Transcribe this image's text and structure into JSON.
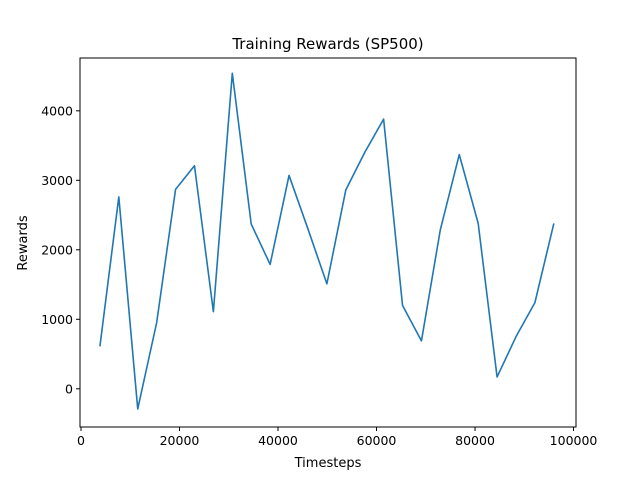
{
  "chart_data": {
    "type": "line",
    "title": "Training Rewards (SP500)",
    "xlabel": "Timesteps",
    "ylabel": "Rewards",
    "xlim": [
      -200,
      100500
    ],
    "ylim": [
      -550,
      4760
    ],
    "xticks": [
      0,
      20000,
      40000,
      60000,
      80000,
      100000
    ],
    "xtick_labels": [
      "0",
      "20000",
      "40000",
      "60000",
      "80000",
      "100000"
    ],
    "yticks": [
      0,
      1000,
      2000,
      3000,
      4000
    ],
    "ytick_labels": [
      "0",
      "1000",
      "2000",
      "3000",
      "4000"
    ],
    "grid": false,
    "line_color": "#1f77b4",
    "series": [
      {
        "x": [
          3840,
          7680,
          11520,
          15360,
          19200,
          23040,
          26880,
          30720,
          34560,
          38400,
          42240,
          46080,
          49920,
          53760,
          57600,
          61440,
          65280,
          69120,
          72960,
          76800,
          80640,
          84480,
          88320,
          92160,
          96000
        ],
        "values": [
          610,
          2760,
          -290,
          950,
          2870,
          3210,
          1110,
          4540,
          2370,
          1790,
          3070,
          2300,
          1510,
          2860,
          3400,
          3880,
          1200,
          690,
          2290,
          3370,
          2380,
          170,
          750,
          1240,
          2380
        ]
      }
    ]
  }
}
